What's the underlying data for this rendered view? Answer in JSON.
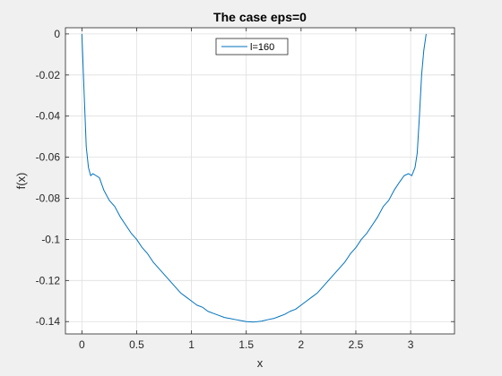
{
  "chart_data": {
    "type": "line",
    "title": "The case eps=0",
    "xlabel": "x",
    "ylabel": "f(x)",
    "xlim": [
      -0.15,
      3.4
    ],
    "ylim": [
      -0.146,
      0.003
    ],
    "xticks": [
      0,
      0.5,
      1,
      1.5,
      2,
      2.5,
      3
    ],
    "xtick_labels": [
      "0",
      "0.5",
      "1",
      "1.5",
      "2",
      "2.5",
      "3"
    ],
    "yticks": [
      0,
      -0.02,
      -0.04,
      -0.06,
      -0.08,
      -0.1,
      -0.12,
      -0.14
    ],
    "ytick_labels": [
      "0",
      "-0.02",
      "-0.04",
      "-0.06",
      "-0.08",
      "-0.1",
      "-0.12",
      "-0.14"
    ],
    "grid": true,
    "legend_position": "top-center",
    "series": [
      {
        "name": "l=160",
        "color": "#0072bd",
        "x": [
          0,
          0.02,
          0.04,
          0.06,
          0.08,
          0.1,
          0.13,
          0.16,
          0.2,
          0.25,
          0.3,
          0.35,
          0.4,
          0.45,
          0.5,
          0.55,
          0.6,
          0.65,
          0.7,
          0.75,
          0.8,
          0.85,
          0.9,
          0.95,
          1.0,
          1.05,
          1.1,
          1.15,
          1.2,
          1.25,
          1.3,
          1.35,
          1.4,
          1.45,
          1.5,
          1.5708,
          1.64,
          1.7,
          1.75,
          1.8,
          1.85,
          1.9,
          1.95,
          2.0,
          2.05,
          2.1,
          2.15,
          2.2,
          2.25,
          2.3,
          2.35,
          2.4,
          2.45,
          2.5,
          2.55,
          2.6,
          2.65,
          2.7,
          2.75,
          2.8,
          2.85,
          2.9,
          2.94,
          2.98,
          3.01,
          3.04,
          3.06,
          3.08,
          3.1,
          3.12,
          3.1416
        ],
        "y": [
          0,
          -0.028,
          -0.055,
          -0.065,
          -0.069,
          -0.068,
          -0.069,
          -0.07,
          -0.076,
          -0.081,
          -0.084,
          -0.089,
          -0.093,
          -0.097,
          -0.1,
          -0.104,
          -0.107,
          -0.111,
          -0.114,
          -0.117,
          -0.12,
          -0.123,
          -0.126,
          -0.128,
          -0.13,
          -0.132,
          -0.133,
          -0.135,
          -0.136,
          -0.137,
          -0.138,
          -0.1385,
          -0.139,
          -0.1395,
          -0.14,
          -0.1402,
          -0.1398,
          -0.139,
          -0.1385,
          -0.1375,
          -0.1365,
          -0.135,
          -0.134,
          -0.132,
          -0.13,
          -0.128,
          -0.126,
          -0.123,
          -0.12,
          -0.117,
          -0.114,
          -0.111,
          -0.107,
          -0.104,
          -0.1,
          -0.097,
          -0.093,
          -0.089,
          -0.084,
          -0.081,
          -0.076,
          -0.072,
          -0.069,
          -0.068,
          -0.069,
          -0.065,
          -0.058,
          -0.04,
          -0.02,
          -0.008,
          0
        ]
      }
    ]
  }
}
